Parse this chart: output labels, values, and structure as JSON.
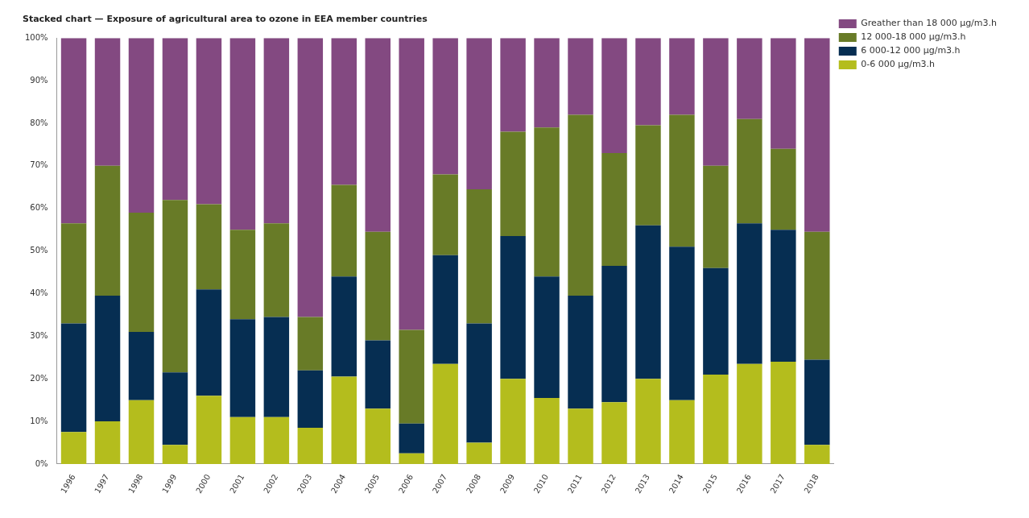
{
  "chart_data": {
    "type": "bar",
    "stacked": true,
    "title": "Stacked chart — Exposure of agricultural area to ozone in EEA member countries",
    "categories": [
      "1996",
      "1997",
      "1998",
      "1999",
      "2000",
      "2001",
      "2002",
      "2003",
      "2004",
      "2005",
      "2006",
      "2007",
      "2008",
      "2009",
      "2010",
      "2011",
      "2012",
      "2013",
      "2014",
      "2015",
      "2016",
      "2017",
      "2018"
    ],
    "series": [
      {
        "name": "0-6 000 µg/m3.h",
        "color": "#b4bd1d",
        "values": [
          7.5,
          10,
          15,
          4.5,
          16,
          11,
          11,
          8.5,
          20.5,
          13,
          2.5,
          23.5,
          5,
          20,
          15.5,
          13,
          14.5,
          20,
          15,
          21,
          23.5,
          24,
          4.5
        ]
      },
      {
        "name": "6 000-12 000 µg/m3.h",
        "color": "#062e52",
        "values": [
          25.5,
          29.5,
          16,
          17,
          25,
          23,
          23.5,
          13.5,
          23.5,
          16,
          7,
          25.5,
          28,
          33.5,
          28.5,
          26.5,
          32,
          36,
          36,
          25,
          33,
          31,
          20
        ]
      },
      {
        "name": "12 000-18 000 µg/m3.h",
        "color": "#687b27",
        "values": [
          23.5,
          30.5,
          28,
          40.5,
          20,
          21,
          22,
          12.5,
          21.5,
          25.5,
          22,
          19,
          31.5,
          24.5,
          35,
          42.5,
          26.5,
          23.5,
          31,
          24,
          24.5,
          19,
          30
        ]
      },
      {
        "name": "Greather than 18 000 µg/m3.h",
        "color": "#834981",
        "values": [
          43.5,
          30,
          41,
          38,
          39,
          45,
          43.5,
          65.5,
          34.5,
          45.5,
          68.5,
          32,
          35.5,
          22,
          21,
          18,
          27,
          20.5,
          18,
          30,
          19,
          26,
          45.5
        ]
      }
    ],
    "ylim": [
      0,
      100
    ],
    "yticks": [
      {
        "value": 0,
        "label": "0%"
      },
      {
        "value": 10,
        "label": "10%"
      },
      {
        "value": 20,
        "label": "20%"
      },
      {
        "value": 30,
        "label": "30%"
      },
      {
        "value": 40,
        "label": "40%"
      },
      {
        "value": 50,
        "label": "50%"
      },
      {
        "value": 60,
        "label": "60%"
      },
      {
        "value": 70,
        "label": "70%"
      },
      {
        "value": 80,
        "label": "80%"
      },
      {
        "value": 90,
        "label": "90%"
      },
      {
        "value": 100,
        "label": "100%"
      }
    ],
    "grid": false,
    "legend": "top right"
  }
}
